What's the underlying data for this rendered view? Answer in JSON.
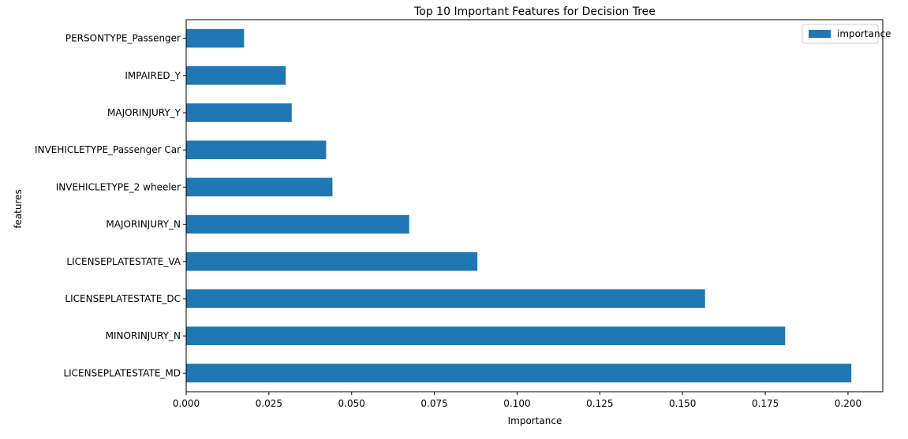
{
  "chart_data": {
    "type": "bar",
    "orientation": "horizontal",
    "title": "Top 10 Important Features for Decision Tree",
    "xlabel": "Importance",
    "ylabel": "features",
    "xlim": [
      0,
      0.2105
    ],
    "x_ticks": [
      "0.000",
      "0.025",
      "0.050",
      "0.075",
      "0.100",
      "0.125",
      "0.150",
      "0.175",
      "0.200"
    ],
    "categories": [
      "LICENSEPLATESTATE_MD",
      "MINORINJURY_N",
      "LICENSEPLATESTATE_DC",
      "LICENSEPLATESTATE_VA",
      "MAJORINJURY_N",
      "INVEHICLETYPE_2 wheeler",
      "INVEHICLETYPE_Passenger Car",
      "MAJORINJURY_Y",
      "IMPAIRED_Y",
      "PERSONTYPE_Passenger"
    ],
    "series": [
      {
        "name": "importance",
        "color": "#1f77b4",
        "values": [
          0.201,
          0.181,
          0.1568,
          0.088,
          0.0674,
          0.0442,
          0.0423,
          0.0319,
          0.0301,
          0.0175
        ]
      }
    ],
    "legend": {
      "label": "importance",
      "position": "top-right"
    },
    "grid": false
  }
}
